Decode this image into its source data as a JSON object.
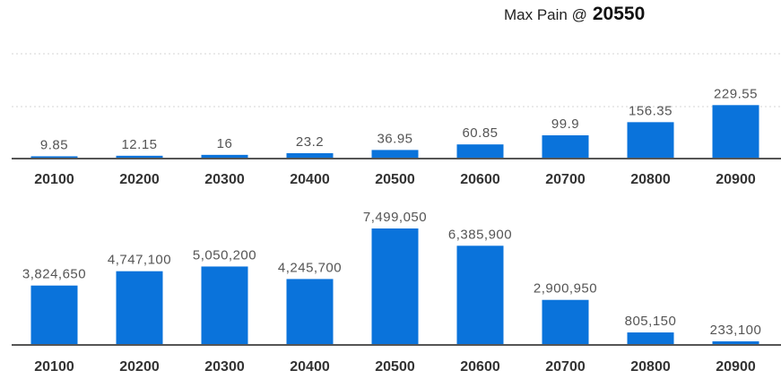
{
  "header": {
    "max_pain_label": "Max Pain @",
    "max_pain_value": "20550"
  },
  "colors": {
    "bar": "#0a73db",
    "axis": "#555555",
    "grid": "#d4d4d4"
  },
  "chart_data": [
    {
      "type": "bar",
      "categories": [
        "20100",
        "20200",
        "20300",
        "20400",
        "20500",
        "20600",
        "20700",
        "20800",
        "20900"
      ],
      "values": [
        9.85,
        12.15,
        16,
        23.2,
        36.95,
        60.85,
        99.9,
        156.35,
        229.55
      ],
      "value_labels": [
        "9.85",
        "12.15",
        "16",
        "23.2",
        "36.95",
        "60.85",
        "99.9",
        "156.35",
        "229.55"
      ],
      "ylim": [
        0,
        400
      ],
      "grid": true
    },
    {
      "type": "bar",
      "categories": [
        "20100",
        "20200",
        "20300",
        "20400",
        "20500",
        "20600",
        "20700",
        "20800",
        "20900"
      ],
      "values": [
        3824650,
        4747100,
        5050200,
        4245700,
        7499050,
        6385900,
        2900950,
        805150,
        233100
      ],
      "value_labels": [
        "3,824,650",
        "4,747,100",
        "5,050,200",
        "4,245,700",
        "7,499,050",
        "6,385,900",
        "2,900,950",
        "805,150",
        "233,100"
      ],
      "ylim": [
        0,
        7499050
      ],
      "grid": false
    }
  ]
}
